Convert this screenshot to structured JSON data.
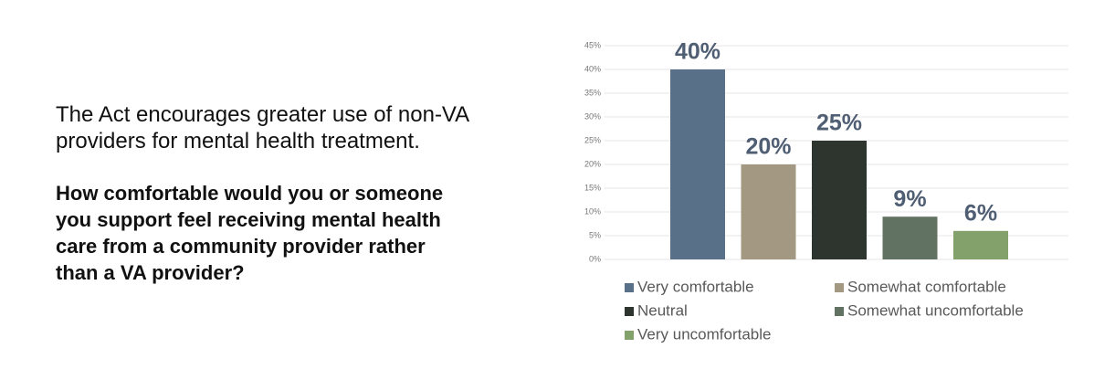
{
  "text": {
    "intro": [
      "The Act encourages greater use of non-VA",
      "providers for mental health treatment."
    ],
    "question": [
      "How comfortable would you or someone",
      "you support feel receiving mental health",
      "care from a community provider rather",
      "than a VA provider?"
    ]
  },
  "chart_data": {
    "type": "bar",
    "categories": [
      "Very comfortable",
      "Somewhat comfortable",
      "Neutral",
      "Somewhat uncomfortable",
      "Very uncomfortable"
    ],
    "values": [
      40,
      20,
      25,
      9,
      6
    ],
    "value_labels": [
      "40%",
      "20%",
      "25%",
      "9%",
      "6%"
    ],
    "colors": [
      "#587189",
      "#a39882",
      "#2e352f",
      "#617262",
      "#83a16a"
    ],
    "ylim": [
      0,
      45
    ],
    "yticks": [
      {
        "value": 0,
        "label": "0%"
      },
      {
        "value": 5,
        "label": "5%"
      },
      {
        "value": 10,
        "label": "10%"
      },
      {
        "value": 15,
        "label": "15%"
      },
      {
        "value": 20,
        "label": "20%"
      },
      {
        "value": 25,
        "label": "25%"
      },
      {
        "value": 30,
        "label": "30%"
      },
      {
        "value": 35,
        "label": "35%"
      },
      {
        "value": 40,
        "label": "40%"
      },
      {
        "value": 45,
        "label": "45%"
      }
    ],
    "grid": true,
    "legend": "bottom"
  }
}
